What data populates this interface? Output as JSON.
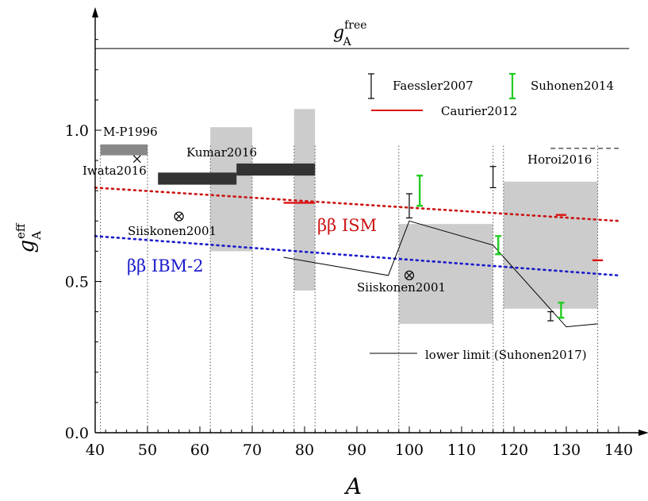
{
  "chart_data": {
    "type": "scatter",
    "xlabel": "A",
    "ylabel": "g_A^eff",
    "xlim": [
      40,
      143
    ],
    "ylim": [
      0,
      1.37
    ],
    "xticks": [
      "40",
      "50",
      "60",
      "70",
      "80",
      "90",
      "100",
      "110",
      "120",
      "130",
      "140"
    ],
    "yticks": [
      "0.0",
      "0.5",
      "1.0"
    ],
    "free_line": {
      "label_base": "g",
      "label_sub": "A",
      "label_sup": "free",
      "y": 1.27
    },
    "legend": {
      "faessler": "Faessler2007",
      "suhonen2014": "Suhonen2014",
      "caurier": "Caurier2012",
      "lower_limit": "lower limit (Suhonen2017)"
    },
    "labels": {
      "mp1996": "M-P1996",
      "iwata": "Iwata2016",
      "kumar": "Kumar2016",
      "siiskonen_a": "Siiskonen2001",
      "siiskonen_b": "Siiskonen2001",
      "horoi": "Horoi2016",
      "ism": "ββ ISM",
      "ibm": "ββ IBM-2"
    },
    "colors": {
      "ism": "#cc1111",
      "ibm": "#1a1acc",
      "suhonen2014": "#22cc22",
      "caurier": "#dd1111",
      "gray_box": "#cccccc",
      "mp_box": "#888888",
      "kumar_box": "#333333"
    },
    "gray_boxes": [
      {
        "x": [
          62,
          70
        ],
        "y": [
          0.6,
          1.01
        ]
      },
      {
        "x": [
          78,
          82
        ],
        "y": [
          0.47,
          1.07
        ]
      },
      {
        "x": [
          98,
          116
        ],
        "y": [
          0.36,
          0.69
        ]
      },
      {
        "x": [
          118,
          136
        ],
        "y": [
          0.41,
          0.83
        ]
      }
    ],
    "dark_bars": [
      {
        "x": [
          41,
          50
        ],
        "y": [
          0.917,
          0.953
        ],
        "color": "mp"
      },
      {
        "x": [
          52,
          67
        ],
        "y": [
          0.82,
          0.86
        ],
        "color": "kumar"
      },
      {
        "x": [
          67,
          82
        ],
        "y": [
          0.85,
          0.89
        ],
        "color": "kumar"
      }
    ],
    "vertical_dotted": [
      41,
      50,
      62,
      70,
      78,
      82,
      98,
      116,
      118,
      136
    ],
    "ism_curve": {
      "x": [
        40,
        140
      ],
      "y": [
        0.81,
        0.7
      ]
    },
    "ibm_curve": {
      "x": [
        40,
        140
      ],
      "y": [
        0.65,
        0.52
      ]
    },
    "faessler_bars": [
      {
        "x": 100,
        "y": [
          0.71,
          0.79
        ]
      },
      {
        "x": 116,
        "y": [
          0.81,
          0.88
        ]
      },
      {
        "x": 127,
        "y": [
          0.37,
          0.4
        ]
      }
    ],
    "suhonen2014_bars": [
      {
        "x": 102,
        "y": [
          0.75,
          0.85
        ]
      },
      {
        "x": 117,
        "y": [
          0.59,
          0.65
        ]
      },
      {
        "x": 129,
        "y": [
          0.38,
          0.43
        ]
      }
    ],
    "caurier_marks": [
      {
        "x": [
          76,
          82
        ],
        "y": 0.76
      },
      {
        "x": [
          128,
          130
        ],
        "y": 0.72
      },
      {
        "x": [
          135,
          137
        ],
        "y": 0.57
      }
    ],
    "lower_limit": {
      "x": [
        76,
        96,
        100,
        116,
        130,
        136
      ],
      "y": [
        0.58,
        0.52,
        0.7,
        0.62,
        0.35,
        0.36
      ]
    },
    "siiskonen_points": [
      {
        "x": 56,
        "y": 0.715
      },
      {
        "x": 100,
        "y": 0.52
      }
    ],
    "iwata_point": {
      "x": 48,
      "y": 0.905
    },
    "horoi_dashed": {
      "x": [
        127,
        140
      ],
      "y": 0.94
    }
  }
}
